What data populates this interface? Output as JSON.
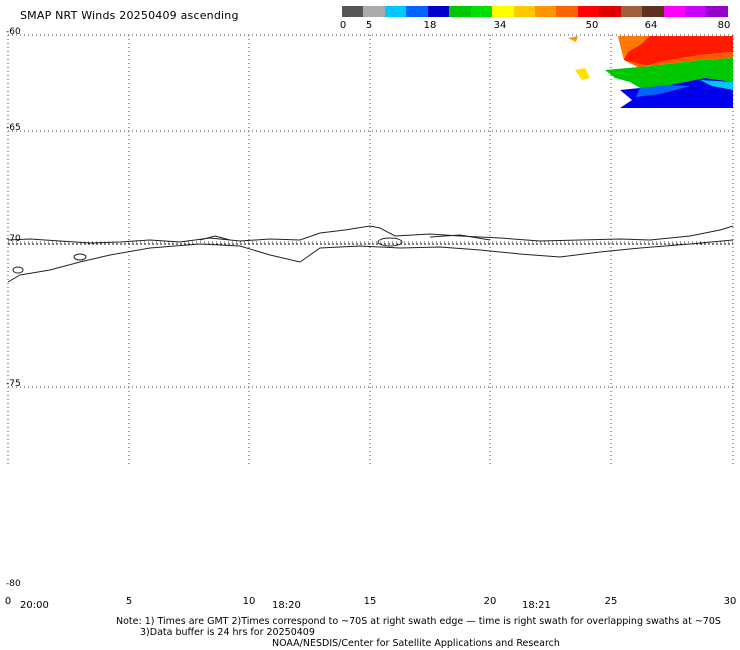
{
  "title": "SMAP NRT Winds 20250409 ascending",
  "colorbar": {
    "ticks": [
      "0",
      "5",
      "18",
      "34",
      "50",
      "64",
      "80"
    ],
    "segments": [
      "#555555",
      "#aaaaaa",
      "#00c8ff",
      "#0064ff",
      "#0000c8",
      "#00c800",
      "#00e000",
      "#ffff00",
      "#ffc800",
      "#ff9600",
      "#ff6400",
      "#ff0000",
      "#e00000",
      "#a06040",
      "#603020",
      "#ff00ff",
      "#c800ff",
      "#9600c8"
    ]
  },
  "latitude_labels": [
    "-60",
    "-65",
    "-70",
    "-75",
    "-80"
  ],
  "longitude_labels": [
    "0",
    "5",
    "10",
    "15",
    "20",
    "25",
    "30"
  ],
  "time_labels": [
    "20:00",
    "18:20",
    "18:21"
  ],
  "notes": {
    "line1": "Note: 1) Times are GMT 2)Times correspond to ~70S at right swath edge — time is right swath for overlapping swaths at ~70S",
    "line2": "3)Data buffer is 24 hrs for 20250409",
    "line3": "NOAA/NESDIS/Center for Satellite Applications and Research"
  }
}
